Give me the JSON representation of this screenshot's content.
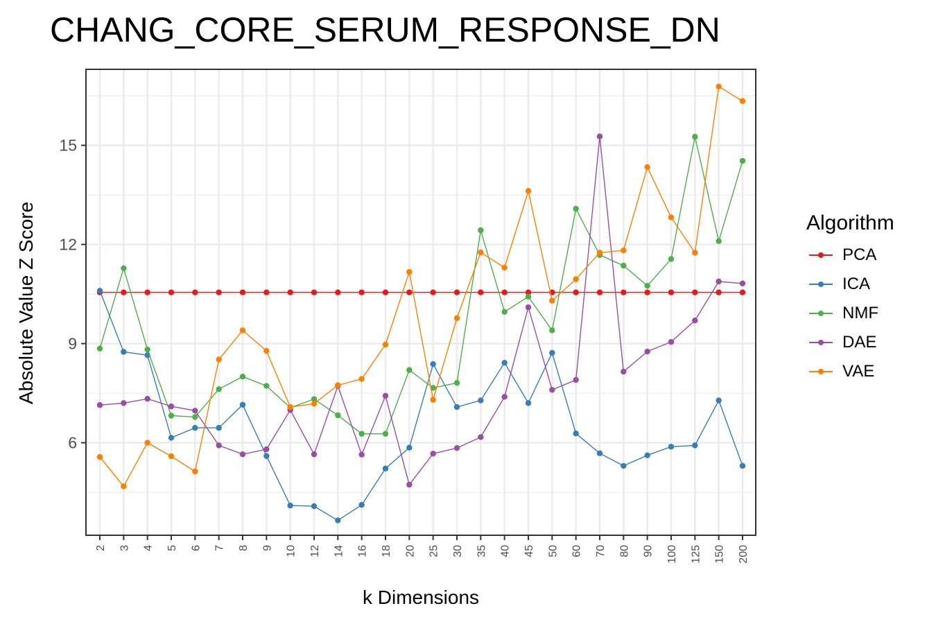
{
  "chart_data": {
    "type": "line",
    "title": "CHANG_CORE_SERUM_RESPONSE_DN",
    "xlabel": "k Dimensions",
    "ylabel": "Absolute Value Z Score",
    "categories": [
      "2",
      "3",
      "4",
      "5",
      "6",
      "7",
      "8",
      "9",
      "10",
      "12",
      "14",
      "16",
      "18",
      "20",
      "25",
      "30",
      "35",
      "40",
      "45",
      "50",
      "60",
      "70",
      "80",
      "90",
      "100",
      "125",
      "150",
      "200"
    ],
    "y_ticks": [
      6,
      9,
      12,
      15
    ],
    "ylim": [
      3.2,
      17.3
    ],
    "grid": true,
    "legend_title": "Algorithm",
    "legend_position": "right",
    "series": [
      {
        "name": "PCA",
        "color": "#E41A1C",
        "values": [
          10.55,
          10.55,
          10.55,
          10.55,
          10.55,
          10.55,
          10.55,
          10.55,
          10.55,
          10.55,
          10.55,
          10.55,
          10.55,
          10.55,
          10.55,
          10.55,
          10.55,
          10.55,
          10.55,
          10.55,
          10.55,
          10.55,
          10.55,
          10.55,
          10.55,
          10.55,
          10.55,
          10.55
        ]
      },
      {
        "name": "ICA",
        "color": "#377EB8",
        "values": [
          10.6,
          8.75,
          8.65,
          6.15,
          6.45,
          6.45,
          7.15,
          5.6,
          4.1,
          4.08,
          3.65,
          4.12,
          5.22,
          5.85,
          8.38,
          7.08,
          7.28,
          8.42,
          7.2,
          8.72,
          6.28,
          5.68,
          5.3,
          5.62,
          5.88,
          5.92,
          7.28,
          5.3
        ]
      },
      {
        "name": "NMF",
        "color": "#4DAF4A",
        "values": [
          8.85,
          11.28,
          8.82,
          6.82,
          6.78,
          7.62,
          8.0,
          7.72,
          7.06,
          7.32,
          6.83,
          6.27,
          6.27,
          8.2,
          7.66,
          7.81,
          12.43,
          9.96,
          10.42,
          9.4,
          13.08,
          11.68,
          11.36,
          10.75,
          11.56,
          15.26,
          12.1,
          14.53
        ]
      },
      {
        "name": "DAE",
        "color": "#984EA3",
        "values": [
          7.14,
          7.2,
          7.33,
          7.1,
          6.97,
          5.92,
          5.65,
          5.8,
          6.99,
          5.65,
          7.72,
          5.64,
          7.42,
          4.73,
          5.67,
          5.84,
          6.17,
          7.39,
          10.1,
          7.6,
          7.9,
          15.27,
          8.15,
          8.76,
          9.05,
          9.7,
          10.88,
          10.82
        ]
      },
      {
        "name": "VAE",
        "color": "#FF7F00",
        "values": [
          5.57,
          4.68,
          6.0,
          5.59,
          5.13,
          8.52,
          9.4,
          8.78,
          7.08,
          7.18,
          7.74,
          7.93,
          8.97,
          11.17,
          7.3,
          9.77,
          11.76,
          11.3,
          13.62,
          10.3,
          10.95,
          11.75,
          11.82,
          14.34,
          12.82,
          11.75,
          16.78,
          16.34
        ]
      }
    ]
  }
}
